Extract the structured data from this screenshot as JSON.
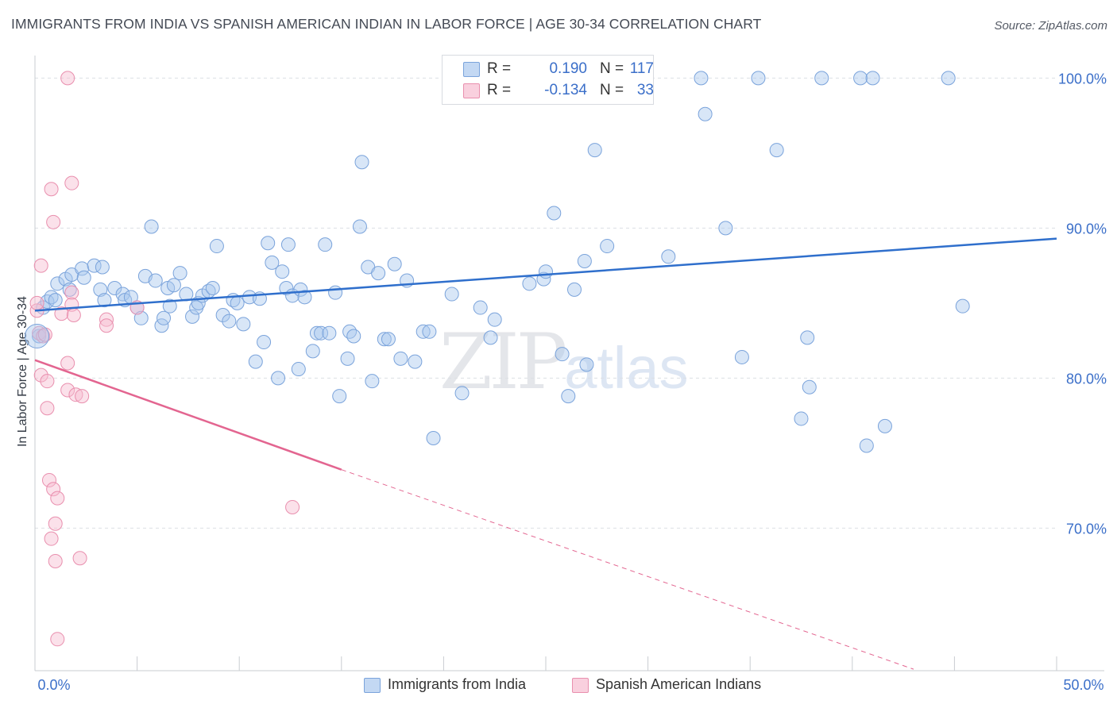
{
  "header": {
    "title": "IMMIGRANTS FROM INDIA VS SPANISH AMERICAN INDIAN IN LABOR FORCE | AGE 30-34 CORRELATION CHART",
    "source": "Source: ZipAtlas.com"
  },
  "watermark": {
    "zip": "ZIP",
    "atlas": "atlas"
  },
  "legend": {
    "r_label": "R =",
    "n_label": "N =",
    "india": {
      "r": "0.190",
      "n": "117"
    },
    "spanish": {
      "r": "-0.134",
      "n": "33"
    }
  },
  "bottom_legend": {
    "india": "Immigrants from India",
    "spanish": "Spanish American Indians"
  },
  "colors": {
    "india_fill": "#a9c7ee",
    "india_stroke": "#7aa3db",
    "india_line": "#2f6fcc",
    "spanish_fill": "#f6bdd0",
    "spanish_stroke": "#e98fae",
    "spanish_line": "#e36590",
    "tick_label": "#3b6fc9",
    "grid": "#dcdfe4"
  },
  "chart_data": {
    "type": "scatter",
    "title": "IMMIGRANTS FROM INDIA VS SPANISH AMERICAN INDIAN IN LABOR FORCE | AGE 30-34 CORRELATION CHART",
    "xlabel": "",
    "ylabel": "In Labor Force | Age 30-34",
    "xlim": [
      0,
      50
    ],
    "ylim": [
      60.5,
      101.5
    ],
    "x_tick_labels": [
      "0.0%",
      "50.0%"
    ],
    "y_ticks": [
      70,
      80,
      90,
      100
    ],
    "y_tick_labels": [
      "70.0%",
      "80.0%",
      "90.0%",
      "100.0%"
    ],
    "grid": true,
    "legend_position": "top-center",
    "series": [
      {
        "name": "Immigrants from India",
        "r": 0.19,
        "n": 117,
        "trend": {
          "x": [
            0,
            50
          ],
          "y": [
            84.5,
            89.3
          ]
        },
        "points": [
          [
            0.2,
            82.8
          ],
          [
            0.4,
            84.7
          ],
          [
            0.6,
            85.1
          ],
          [
            0.8,
            85.4
          ],
          [
            1.0,
            85.2
          ],
          [
            1.1,
            86.3
          ],
          [
            1.5,
            86.6
          ],
          [
            1.7,
            85.9
          ],
          [
            1.8,
            86.9
          ],
          [
            2.3,
            87.3
          ],
          [
            2.4,
            86.7
          ],
          [
            2.9,
            87.5
          ],
          [
            3.3,
            87.4
          ],
          [
            3.2,
            85.9
          ],
          [
            3.4,
            85.2
          ],
          [
            3.9,
            86.0
          ],
          [
            4.3,
            85.6
          ],
          [
            4.4,
            85.2
          ],
          [
            4.7,
            85.4
          ],
          [
            5.0,
            84.7
          ],
          [
            5.2,
            84.0
          ],
          [
            5.4,
            86.8
          ],
          [
            5.7,
            90.1
          ],
          [
            5.9,
            86.5
          ],
          [
            6.2,
            83.5
          ],
          [
            6.3,
            84.0
          ],
          [
            6.5,
            86.0
          ],
          [
            6.6,
            84.8
          ],
          [
            6.8,
            86.2
          ],
          [
            7.1,
            87.0
          ],
          [
            7.4,
            85.6
          ],
          [
            7.7,
            84.1
          ],
          [
            7.9,
            84.7
          ],
          [
            8.0,
            85.0
          ],
          [
            8.2,
            85.5
          ],
          [
            8.5,
            85.8
          ],
          [
            8.7,
            86.0
          ],
          [
            8.9,
            88.8
          ],
          [
            9.2,
            84.2
          ],
          [
            9.5,
            83.8
          ],
          [
            9.7,
            85.2
          ],
          [
            9.9,
            85.0
          ],
          [
            10.2,
            83.6
          ],
          [
            10.5,
            85.4
          ],
          [
            10.8,
            81.1
          ],
          [
            11.0,
            85.3
          ],
          [
            11.2,
            82.4
          ],
          [
            11.4,
            89.0
          ],
          [
            11.6,
            87.7
          ],
          [
            11.9,
            80.0
          ],
          [
            12.1,
            87.1
          ],
          [
            12.3,
            86.0
          ],
          [
            12.4,
            88.9
          ],
          [
            12.6,
            85.5
          ],
          [
            12.9,
            80.6
          ],
          [
            13.0,
            85.9
          ],
          [
            13.2,
            85.4
          ],
          [
            13.6,
            81.8
          ],
          [
            13.8,
            83.0
          ],
          [
            14.0,
            83.0
          ],
          [
            14.2,
            88.9
          ],
          [
            14.4,
            83.0
          ],
          [
            14.7,
            85.7
          ],
          [
            14.9,
            78.8
          ],
          [
            15.3,
            81.3
          ],
          [
            15.4,
            83.1
          ],
          [
            15.6,
            82.8
          ],
          [
            15.9,
            90.1
          ],
          [
            16.3,
            87.4
          ],
          [
            16.5,
            79.8
          ],
          [
            16.8,
            87.0
          ],
          [
            17.1,
            82.6
          ],
          [
            17.3,
            82.6
          ],
          [
            17.6,
            87.6
          ],
          [
            17.9,
            81.3
          ],
          [
            18.2,
            86.5
          ],
          [
            18.6,
            81.1
          ],
          [
            19.0,
            83.1
          ],
          [
            19.3,
            83.1
          ],
          [
            19.5,
            76.0
          ],
          [
            20.4,
            85.6
          ],
          [
            20.9,
            79.0
          ],
          [
            21.8,
            84.7
          ],
          [
            22.3,
            82.7
          ],
          [
            22.5,
            83.9
          ],
          [
            22.9,
            100.0
          ],
          [
            23.5,
            100.0
          ],
          [
            24.2,
            86.3
          ],
          [
            24.9,
            86.6
          ],
          [
            25.0,
            87.1
          ],
          [
            25.4,
            91.0
          ],
          [
            26.1,
            78.8
          ],
          [
            26.4,
            85.9
          ],
          [
            26.9,
            87.8
          ],
          [
            27.0,
            80.9
          ],
          [
            27.4,
            95.2
          ],
          [
            28.0,
            88.8
          ],
          [
            31.0,
            88.1
          ],
          [
            32.6,
            100.0
          ],
          [
            32.8,
            97.6
          ],
          [
            33.8,
            90.0
          ],
          [
            34.6,
            81.4
          ],
          [
            35.4,
            100.0
          ],
          [
            36.3,
            95.2
          ],
          [
            37.5,
            77.3
          ],
          [
            37.8,
            82.7
          ],
          [
            37.9,
            79.4
          ],
          [
            38.5,
            100.0
          ],
          [
            40.4,
            100.0
          ],
          [
            40.7,
            75.5
          ],
          [
            41.0,
            100.0
          ],
          [
            41.6,
            76.8
          ],
          [
            44.7,
            100.0
          ],
          [
            45.4,
            84.8
          ],
          [
            16.0,
            94.4
          ],
          [
            25.8,
            81.6
          ]
        ]
      },
      {
        "name": "Spanish American Indians",
        "r": -0.134,
        "n": 33,
        "trend": {
          "x": [
            0,
            15
          ],
          "y": [
            81.2,
            73.9
          ]
        },
        "trend_dashed": {
          "x": [
            15,
            43
          ],
          "y": [
            73.9,
            60.6
          ]
        },
        "points": [
          [
            0.1,
            84.5
          ],
          [
            0.2,
            83.0
          ],
          [
            0.3,
            80.2
          ],
          [
            0.4,
            82.8
          ],
          [
            0.6,
            79.8
          ],
          [
            0.6,
            78.0
          ],
          [
            0.7,
            73.2
          ],
          [
            0.8,
            69.3
          ],
          [
            0.8,
            92.6
          ],
          [
            0.9,
            90.4
          ],
          [
            0.9,
            72.6
          ],
          [
            1.0,
            70.3
          ],
          [
            1.0,
            67.8
          ],
          [
            1.1,
            72.0
          ],
          [
            1.1,
            62.6
          ],
          [
            1.3,
            84.3
          ],
          [
            1.6,
            100.0
          ],
          [
            1.6,
            81.0
          ],
          [
            1.6,
            79.2
          ],
          [
            1.8,
            85.7
          ],
          [
            1.8,
            84.9
          ],
          [
            1.8,
            93.0
          ],
          [
            1.9,
            84.2
          ],
          [
            2.0,
            78.9
          ],
          [
            2.2,
            68.0
          ],
          [
            2.3,
            78.8
          ],
          [
            3.5,
            83.9
          ],
          [
            3.5,
            83.5
          ],
          [
            5.0,
            84.7
          ],
          [
            12.6,
            71.4
          ],
          [
            0.3,
            87.5
          ],
          [
            0.1,
            85.0
          ],
          [
            0.5,
            82.9
          ]
        ]
      }
    ]
  }
}
